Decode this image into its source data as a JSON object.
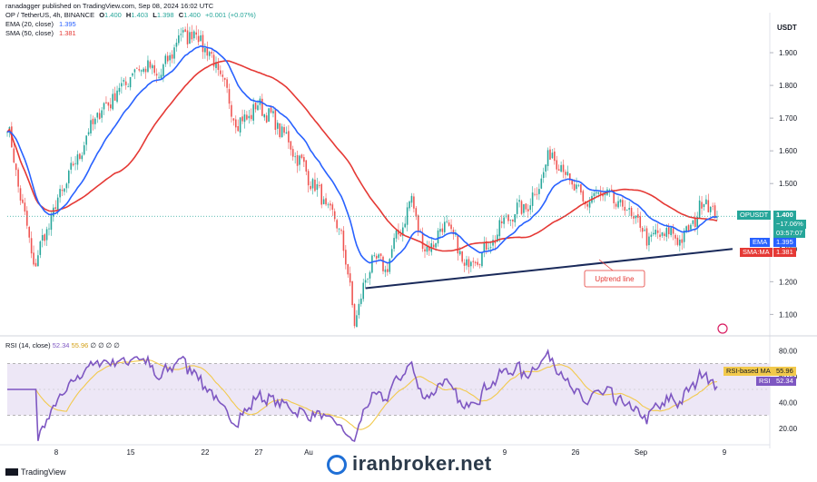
{
  "header": {
    "published": "ranadagger published on TradingView.com, Sep 08, 2024 16:02 UTC",
    "symbol": "OP / TetherUS, 4h, BINANCE",
    "ohlc": {
      "o_label": "O",
      "o": "1.400",
      "h_label": "H",
      "h": "1.403",
      "l_label": "L",
      "l": "1.398",
      "c_label": "C",
      "c": "1.400",
      "change": "+0.001 (+0.07%)"
    },
    "ema_label": "EMA (20, close)",
    "ema_value": "1.395",
    "sma_label": "SMA (50, close)",
    "sma_value": "1.381"
  },
  "rsi_legend": {
    "label": "RSI (14, close)",
    "v1": "52.34",
    "v2": "55.96",
    "extra": "∅ ∅ ∅ ∅"
  },
  "currency": "USDT",
  "price_axis": {
    "ticks": [
      "1.900",
      "1.800",
      "1.700",
      "1.600",
      "1.500",
      "1.300",
      "1.200",
      "1.100"
    ]
  },
  "rsi_axis": {
    "ticks": [
      "80.00",
      "60.00",
      "40.00",
      "20.00"
    ]
  },
  "time_axis": {
    "labels": [
      "8",
      "15",
      "22",
      "27",
      "Au",
      "9",
      "26",
      "Sep",
      "9"
    ]
  },
  "price_tags": {
    "symbol": "OPUSDT",
    "price": "1.400",
    "change": "−17.06%",
    "countdown": "03:57:07",
    "ema_label": "EMA",
    "ema_value": "1.395",
    "sma_label": "SMA:MA",
    "sma_value": "1.381"
  },
  "rsi_tags": {
    "ma_label": "RSI-based MA",
    "ma_value": "55.96",
    "rsi_label": "RSI",
    "rsi_value": "52.34"
  },
  "annotation": {
    "text": "Uptrend line"
  },
  "footer": {
    "logo_text": "TradingView"
  },
  "watermark": {
    "text": "iranbroker.net"
  },
  "colors": {
    "up": "#26a69a",
    "down": "#ef5350",
    "ema": "#2962ff",
    "sma": "#e53935",
    "rsi": "#7e57c2",
    "rsi_ma": "#f2c94c",
    "trend": "#1a2a5a",
    "band": "#ede7f6"
  },
  "chart_data": [
    {
      "type": "candlestick",
      "title": "OP / TetherUS, 4h, BINANCE",
      "y_unit": "USDT",
      "ylim": [
        1.04,
        2.0
      ],
      "x_tick_labels": [
        "8",
        "15",
        "22",
        "27",
        "Au",
        "9",
        "26",
        "Sep",
        "9"
      ],
      "price_anchors": [
        {
          "t": 0,
          "p": 1.68
        },
        {
          "t": 12,
          "p": 1.25
        },
        {
          "t": 22,
          "p": 1.43
        },
        {
          "t": 40,
          "p": 1.7
        },
        {
          "t": 60,
          "p": 1.86
        },
        {
          "t": 70,
          "p": 1.83
        },
        {
          "t": 78,
          "p": 1.95
        },
        {
          "t": 86,
          "p": 1.96
        },
        {
          "t": 95,
          "p": 1.86
        },
        {
          "t": 105,
          "p": 1.68
        },
        {
          "t": 115,
          "p": 1.74
        },
        {
          "t": 125,
          "p": 1.66
        },
        {
          "t": 140,
          "p": 1.49
        },
        {
          "t": 152,
          "p": 1.35
        },
        {
          "t": 158,
          "p": 1.08
        },
        {
          "t": 166,
          "p": 1.27
        },
        {
          "t": 172,
          "p": 1.24
        },
        {
          "t": 184,
          "p": 1.45
        },
        {
          "t": 190,
          "p": 1.29
        },
        {
          "t": 200,
          "p": 1.38
        },
        {
          "t": 208,
          "p": 1.25
        },
        {
          "t": 218,
          "p": 1.3
        },
        {
          "t": 228,
          "p": 1.4
        },
        {
          "t": 238,
          "p": 1.44
        },
        {
          "t": 248,
          "p": 1.6
        },
        {
          "t": 254,
          "p": 1.53
        },
        {
          "t": 262,
          "p": 1.44
        },
        {
          "t": 270,
          "p": 1.47
        },
        {
          "t": 282,
          "p": 1.42
        },
        {
          "t": 292,
          "p": 1.33
        },
        {
          "t": 300,
          "p": 1.35
        },
        {
          "t": 308,
          "p": 1.33
        },
        {
          "t": 318,
          "p": 1.46
        },
        {
          "t": 322,
          "p": 1.4
        }
      ],
      "series": [
        {
          "name": "EMA (20, close)",
          "last": 1.395
        },
        {
          "name": "SMA (50, close)",
          "last": 1.381
        }
      ],
      "trendline": {
        "label": "Uptrend line",
        "from": {
          "t": 163,
          "p": 1.18
        },
        "to": {
          "t": 330,
          "p": 1.3
        }
      },
      "last_price": 1.4
    },
    {
      "type": "line",
      "title": "RSI (14, close)",
      "ylim": [
        10,
        90
      ],
      "bands": [
        30,
        70
      ],
      "last_rsi": 52.34,
      "last_rsi_ma": 55.96
    }
  ]
}
